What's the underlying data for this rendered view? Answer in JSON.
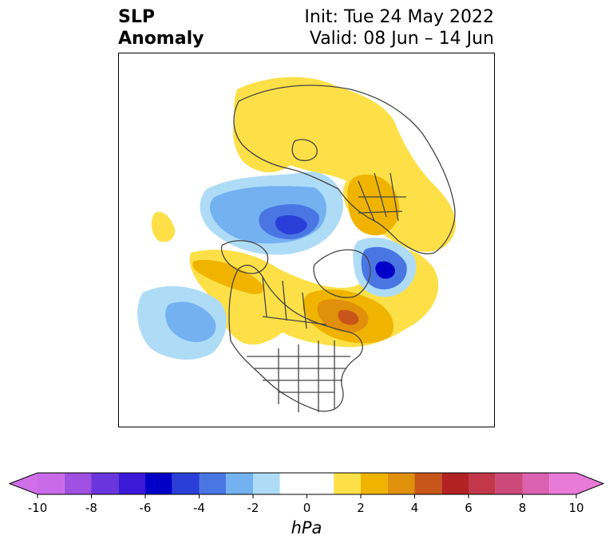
{
  "title": {
    "left_line1": "SLP",
    "left_line2": "Anomaly",
    "right_line1": "Init: Tue 24 May 2022",
    "right_line2": "Valid: 08 Jun – 14 Jun"
  },
  "map": {
    "projection": "north-polar-stereographic",
    "field": "sea level pressure anomaly",
    "colors": {
      "neg_1": "#aedcf7",
      "neg_2": "#74b1f1",
      "neg_3": "#4a76e3",
      "neg_4": "#2a3fd8",
      "neg_5": "#0000c8",
      "pos_1": "#fde047",
      "pos_2": "#f0b400",
      "pos_3": "#e0900a",
      "pos_4": "#c8561a",
      "coast": "#444444"
    }
  },
  "colorbar": {
    "unit": "hPa",
    "tick_labels": [
      "-10",
      "-8",
      "-6",
      "-4",
      "-2",
      "0",
      "2",
      "4",
      "6",
      "8",
      "10"
    ],
    "bins": [
      {
        "from": -10,
        "to": -9,
        "color": "#c96ae8"
      },
      {
        "from": -9,
        "to": -8,
        "color": "#a050e0"
      },
      {
        "from": -8,
        "to": -7,
        "color": "#6a35dc"
      },
      {
        "from": -7,
        "to": -6,
        "color": "#3a1ad8"
      },
      {
        "from": -6,
        "to": -5,
        "color": "#0000c8"
      },
      {
        "from": -5,
        "to": -4,
        "color": "#2a3fd8"
      },
      {
        "from": -4,
        "to": -3,
        "color": "#4a76e3"
      },
      {
        "from": -3,
        "to": -2,
        "color": "#74b1f1"
      },
      {
        "from": -2,
        "to": -1,
        "color": "#aedcf7"
      },
      {
        "from": -1,
        "to": 1,
        "color": "#ffffff"
      },
      {
        "from": 1,
        "to": 2,
        "color": "#fde047"
      },
      {
        "from": 2,
        "to": 3,
        "color": "#f0b400"
      },
      {
        "from": 3,
        "to": 4,
        "color": "#e0900a"
      },
      {
        "from": 4,
        "to": 5,
        "color": "#c8561a"
      },
      {
        "from": 5,
        "to": 6,
        "color": "#b22222"
      },
      {
        "from": 6,
        "to": 7,
        "color": "#c2384a"
      },
      {
        "from": 7,
        "to": 8,
        "color": "#cc4a78"
      },
      {
        "from": 8,
        "to": 9,
        "color": "#da62b0"
      },
      {
        "from": 9,
        "to": 10,
        "color": "#e87ad8"
      }
    ],
    "extend_low_color": "#d070e8",
    "extend_high_color": "#e87ad8"
  }
}
